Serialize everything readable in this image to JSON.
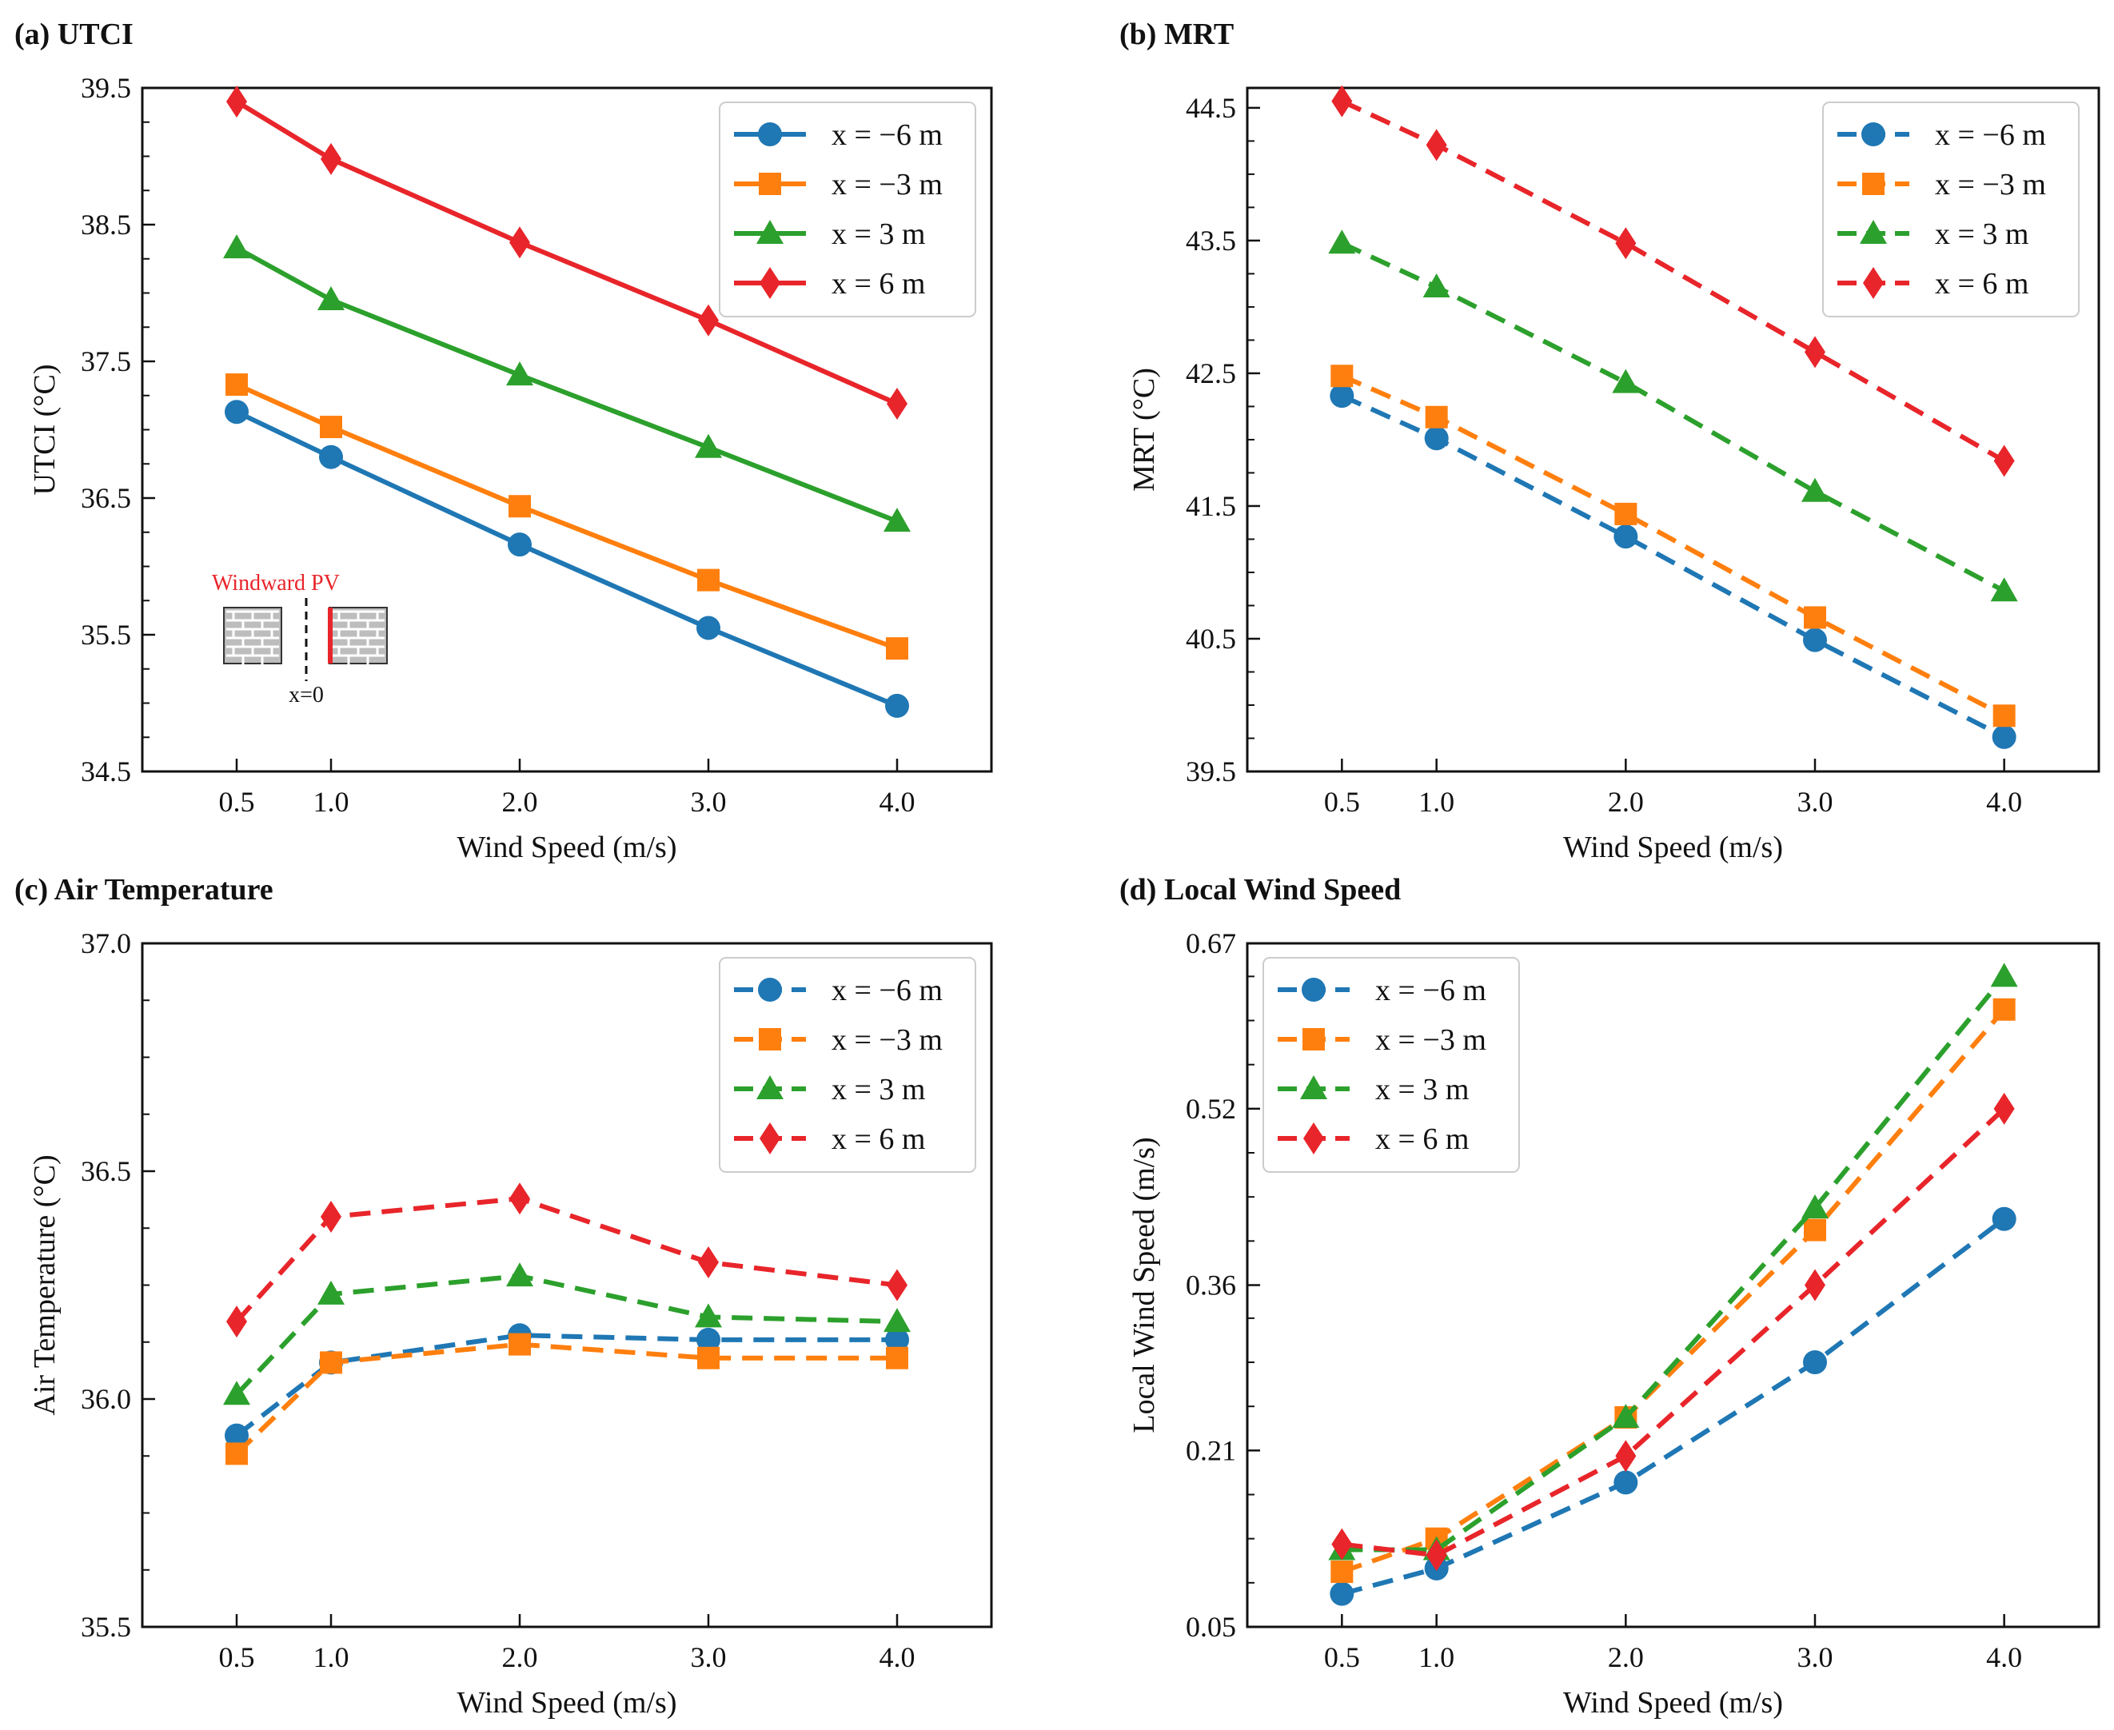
{
  "chart_data": [
    {
      "type": "line",
      "title": "(a) UTCI",
      "xlabel": "Wind Speed (m/s)",
      "ylabel": "UTCI (°C)",
      "x": [
        0.5,
        1.0,
        2.0,
        3.0,
        4.0
      ],
      "xtick_labels": [
        "0.5",
        "1.0",
        "2.0",
        "3.0",
        "4.0"
      ],
      "xlim": [
        0.0,
        4.5
      ],
      "ylim": [
        34.5,
        39.5
      ],
      "yticks": [
        34.5,
        35.5,
        36.5,
        37.5,
        38.5,
        39.5
      ],
      "ytick_labels": [
        "34.5",
        "35.5",
        "36.5",
        "37.5",
        "38.5",
        "39.5"
      ],
      "line_style": "solid",
      "legend_position": "top-right",
      "series": [
        {
          "name": "x = −6 m",
          "values": [
            37.13,
            36.8,
            36.16,
            35.55,
            34.98
          ]
        },
        {
          "name": "x = −3 m",
          "values": [
            37.33,
            37.02,
            36.44,
            35.9,
            35.4
          ]
        },
        {
          "name": "x = 3 m",
          "values": [
            38.33,
            37.95,
            37.4,
            36.87,
            36.33
          ]
        },
        {
          "name": "x = 6 m",
          "values": [
            39.4,
            38.98,
            38.37,
            37.8,
            37.19
          ]
        }
      ],
      "inset": {
        "label": "Windward PV",
        "axis_label": "x=0"
      }
    },
    {
      "type": "line",
      "title": "(b) MRT",
      "xlabel": "Wind Speed (m/s)",
      "ylabel": "MRT (°C)",
      "x": [
        0.5,
        1.0,
        2.0,
        3.0,
        4.0
      ],
      "xtick_labels": [
        "0.5",
        "1.0",
        "2.0",
        "3.0",
        "4.0"
      ],
      "xlim": [
        0.0,
        4.5
      ],
      "ylim": [
        39.5,
        44.65
      ],
      "yticks": [
        39.5,
        40.5,
        41.5,
        42.5,
        43.5,
        44.5
      ],
      "ytick_labels": [
        "39.5",
        "40.5",
        "41.5",
        "42.5",
        "43.5",
        "44.5"
      ],
      "line_style": "dashed",
      "legend_position": "top-right",
      "series": [
        {
          "name": "x = −6 m",
          "values": [
            42.33,
            42.01,
            41.27,
            40.49,
            39.76
          ]
        },
        {
          "name": "x = −3 m",
          "values": [
            42.48,
            42.17,
            41.44,
            40.66,
            39.92
          ]
        },
        {
          "name": "x = 3 m",
          "values": [
            43.48,
            43.15,
            42.43,
            41.61,
            40.86
          ]
        },
        {
          "name": "x = 6 m",
          "values": [
            44.55,
            44.22,
            43.48,
            42.66,
            41.84
          ]
        }
      ]
    },
    {
      "type": "line",
      "title": "(c) Air Temperature",
      "xlabel": "Wind Speed (m/s)",
      "ylabel": "Air Temperature (°C)",
      "x": [
        0.5,
        1.0,
        2.0,
        3.0,
        4.0
      ],
      "xtick_labels": [
        "0.5",
        "1.0",
        "2.0",
        "3.0",
        "4.0"
      ],
      "xlim": [
        0.0,
        4.5
      ],
      "ylim": [
        35.5,
        37.0
      ],
      "yticks": [
        35.5,
        36.0,
        36.5,
        37.0
      ],
      "ytick_labels": [
        "35.5",
        "36.0",
        "36.5",
        "37.0"
      ],
      "line_style": "dashed",
      "legend_position": "top-right",
      "series": [
        {
          "name": "x = −6 m",
          "values": [
            35.92,
            36.08,
            36.14,
            36.13,
            36.13
          ]
        },
        {
          "name": "x = −3 m",
          "values": [
            35.88,
            36.08,
            36.12,
            36.09,
            36.09
          ]
        },
        {
          "name": "x = 3 m",
          "values": [
            36.01,
            36.23,
            36.27,
            36.18,
            36.17
          ]
        },
        {
          "name": "x = 6 m",
          "values": [
            36.17,
            36.4,
            36.44,
            36.3,
            36.25
          ]
        }
      ]
    },
    {
      "type": "line",
      "title": "(d) Local Wind Speed",
      "xlabel": "Wind Speed (m/s)",
      "ylabel": "Local Wind Speed (m/s)",
      "x": [
        0.5,
        1.0,
        2.0,
        3.0,
        4.0
      ],
      "xtick_labels": [
        "0.5",
        "1.0",
        "2.0",
        "3.0",
        "4.0"
      ],
      "xlim": [
        0.0,
        4.5
      ],
      "ylim": [
        0.05,
        0.67
      ],
      "yticks": [
        0.05,
        0.21,
        0.36,
        0.52,
        0.67
      ],
      "ytick_labels": [
        "0.05",
        "0.21",
        "0.36",
        "0.52",
        "0.67"
      ],
      "line_style": "dashed",
      "legend_position": "top-left",
      "series": [
        {
          "name": "x = −6 m",
          "values": [
            0.08,
            0.103,
            0.181,
            0.29,
            0.42
          ]
        },
        {
          "name": "x = −3 m",
          "values": [
            0.1,
            0.13,
            0.24,
            0.41,
            0.61
          ]
        },
        {
          "name": "x = 3 m",
          "values": [
            0.12,
            0.12,
            0.24,
            0.43,
            0.64
          ]
        },
        {
          "name": "x = 6 m",
          "values": [
            0.125,
            0.115,
            0.205,
            0.36,
            0.52
          ]
        }
      ]
    }
  ],
  "series_colors": [
    "#1f77b4",
    "#ff7f0e",
    "#2ca02c",
    "#e8252a"
  ],
  "series_markers": [
    "circle",
    "square",
    "triangle",
    "diamond"
  ],
  "inset_colors": {
    "label": "#e8252a",
    "wall": "#e8252a"
  }
}
